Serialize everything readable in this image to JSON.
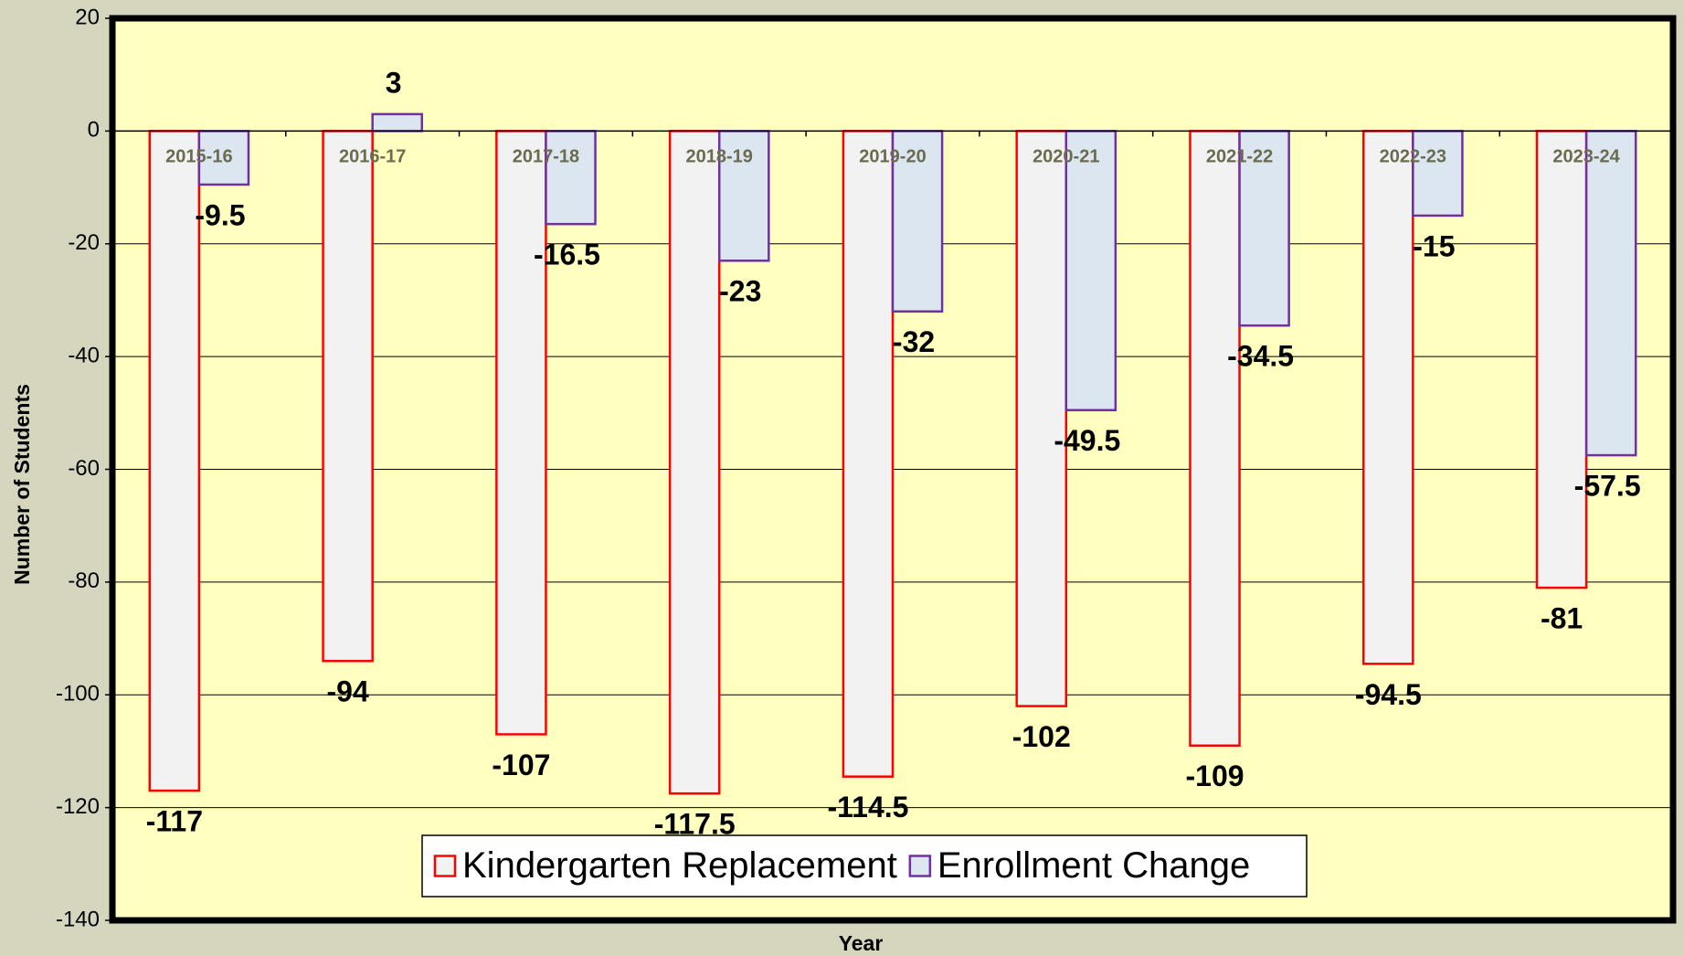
{
  "chart_data": {
    "type": "bar",
    "y_label": "Number of Students",
    "x_label": "Year",
    "categories": [
      "2015-16",
      "2016-17",
      "2017-18",
      "2018-19",
      "2019-20",
      "2020-21",
      "2021-22",
      "2022-23",
      "2023-24"
    ],
    "series": [
      {
        "name": "Kindergarten Replacement",
        "color": "#ff0000",
        "fill": "#f2f2f2",
        "values": [
          -117,
          -94,
          -107,
          -117.5,
          -114.5,
          -102,
          -109,
          -94.5,
          -81
        ]
      },
      {
        "name": "Enrollment Change",
        "color": "#7030a0",
        "fill": "#dce6f0",
        "values": [
          -9.5,
          3,
          -16.5,
          -23,
          -32,
          -49.5,
          -34.5,
          -15,
          -57.5
        ]
      }
    ],
    "ylim": [
      -140,
      20
    ],
    "yticks": [
      -140,
      -120,
      -100,
      -80,
      -60,
      -40,
      -20,
      0,
      20
    ],
    "grid": true,
    "legend": "bottom"
  }
}
